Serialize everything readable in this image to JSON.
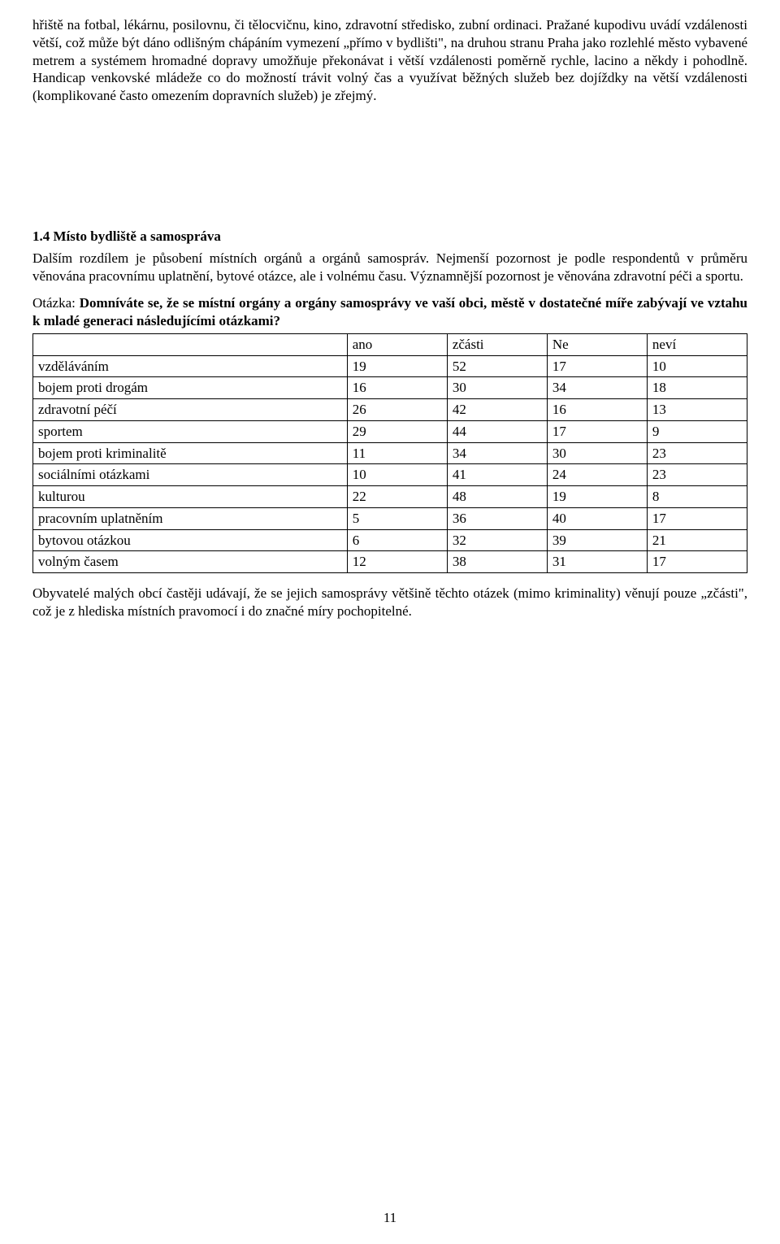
{
  "paragraph1": "hřiště na fotbal, lékárnu, posilovnu, či tělocvičnu, kino, zdravotní středisko, zubní ordinaci. Pražané kupodivu uvádí vzdálenosti větší, což může být dáno odlišným chápáním vymezení „přímo v bydlišti\", na druhou stranu Praha jako rozlehlé město vybavené metrem a systémem hromadné dopravy umožňuje překonávat i větší vzdálenosti poměrně rychle, lacino a někdy i pohodlně. Handicap venkovské mládeže co do možností trávit volný čas a využívat běžných služeb bez dojíždky na větší vzdálenosti (komplikované často omezením dopravních služeb) je zřejmý.",
  "section_heading": "1.4  Místo bydliště a samospráva",
  "paragraph2": "Dalším rozdílem je působení místních orgánů a orgánů samospráv. Nejmenší pozornost je podle respondentů v průměru věnována pracovnímu uplatnění, bytové otázce, ale i volnému času. Významnější pozornost je věnována zdravotní péči a sportu.",
  "question_prefix": "Otázka: ",
  "question_bold": "Domníváte se, že se místní orgány a orgány samosprávy ve vaší obci, městě v dostatečné míře zabývají ve vztahu k mladé generaci následujícími otázkami?",
  "table": {
    "type": "table",
    "columns": [
      "",
      "ano",
      "zčásti",
      "Ne",
      "neví"
    ],
    "rows": [
      [
        "vzděláváním",
        19,
        52,
        17,
        10
      ],
      [
        "bojem proti drogám",
        16,
        30,
        34,
        18
      ],
      [
        "zdravotní péčí",
        26,
        42,
        16,
        13
      ],
      [
        "sportem",
        29,
        44,
        17,
        9
      ],
      [
        "bojem proti kriminalitě",
        11,
        34,
        30,
        23
      ],
      [
        "sociálními otázkami",
        10,
        41,
        24,
        23
      ],
      [
        "kulturou",
        22,
        48,
        19,
        8
      ],
      [
        "pracovním uplatněním",
        5,
        36,
        40,
        17
      ],
      [
        "bytovou otázkou",
        6,
        32,
        39,
        21
      ],
      [
        "volným časem",
        12,
        38,
        31,
        17
      ]
    ],
    "border_color": "#000000",
    "font_size": 17,
    "col_widths_percent": [
      44,
      14,
      14,
      14,
      14
    ]
  },
  "paragraph3": "Obyvatelé malých obcí častěji udávají, že se jejich samosprávy většině těchto otázek (mimo kriminality) věnují pouze „zčásti\", což je z hlediska místních pravomocí i do značné míry pochopitelné.",
  "page_number": "11"
}
